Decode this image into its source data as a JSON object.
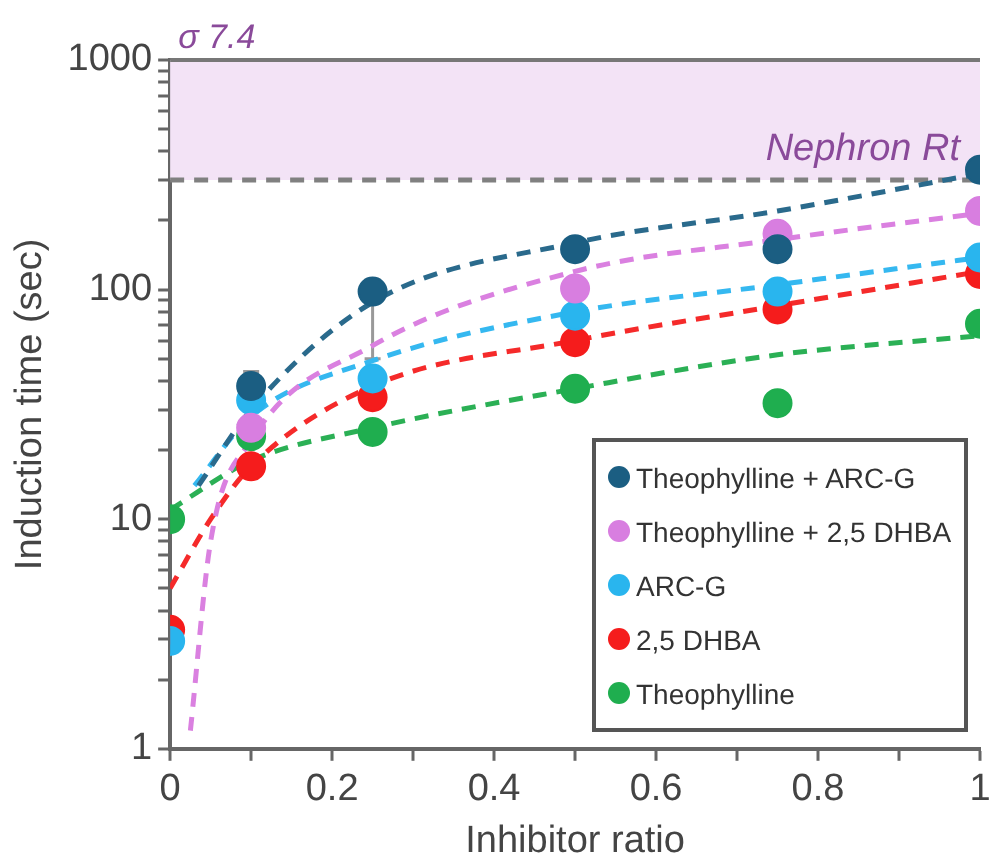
{
  "chart_data": {
    "type": "scatter",
    "xlabel": "Inhibitor ratio",
    "ylabel": "Induction time (sec)",
    "log": "y",
    "marker": "circle",
    "grid": false,
    "legend": "bottom right",
    "xlim": [
      0,
      1
    ],
    "xticks": [
      0,
      {
        "value": 0.1,
        "label": null
      },
      0.2,
      {
        "value": 0.3,
        "label": null
      },
      0.4,
      {
        "value": 0.5,
        "label": null
      },
      0.6,
      {
        "value": 0.7,
        "label": null
      },
      0.8,
      {
        "value": 0.9,
        "label": null
      },
      1
    ],
    "ylim": [
      1,
      1000
    ],
    "yticks": [
      1,
      {
        "value": 2,
        "label": null
      },
      {
        "value": 3,
        "label": null
      },
      {
        "value": 4,
        "label": null
      },
      {
        "value": 5,
        "label": null
      },
      {
        "value": 6,
        "label": null
      },
      {
        "value": 7,
        "label": null
      },
      {
        "value": 8,
        "label": null
      },
      {
        "value": 9,
        "label": null
      },
      10,
      {
        "value": 20,
        "label": null
      },
      {
        "value": 30,
        "label": null
      },
      {
        "value": 40,
        "label": null
      },
      {
        "value": 50,
        "label": null
      },
      {
        "value": 60,
        "label": null
      },
      {
        "value": 70,
        "label": null
      },
      {
        "value": 80,
        "label": null
      },
      {
        "value": 90,
        "label": null
      },
      100,
      {
        "value": 200,
        "label": null
      },
      {
        "value": 300,
        "label": null
      },
      {
        "value": 400,
        "label": null
      },
      {
        "value": 500,
        "label": null
      },
      {
        "value": 600,
        "label": null
      },
      {
        "value": 700,
        "label": null
      },
      {
        "value": 800,
        "label": null
      },
      {
        "value": 900,
        "label": null
      },
      1000
    ],
    "bands": [
      {
        "axis": "y",
        "from": 300,
        "to": 1000,
        "label": "σ 7.4",
        "color": "#f3e3f6"
      }
    ],
    "ref_lines": [
      {
        "axis": "y",
        "value": 300,
        "label": "Nephron Rt",
        "color": "#808080",
        "line_style": "dashed"
      }
    ],
    "series": [
      {
        "type": "line",
        "color": "#2a6a8c",
        "line_style": "dashed",
        "marker": "none",
        "x": [
          0.035,
          0.1,
          0.25,
          0.5,
          0.75,
          1
        ],
        "values": [
          14,
          30,
          88,
          160,
          220,
          320
        ]
      },
      {
        "type": "line",
        "color": "#da80e0",
        "line_style": "dashed",
        "marker": "none",
        "x": [
          0.025,
          0.05,
          0.1,
          0.25,
          0.5,
          0.75,
          1
        ],
        "values": [
          1.2,
          8,
          22,
          57,
          120,
          165,
          215
        ]
      },
      {
        "type": "line",
        "color": "#35b8f0",
        "line_style": "dashed",
        "marker": "none",
        "x": [
          0.03,
          0.1,
          0.25,
          0.5,
          0.75,
          1
        ],
        "values": [
          14,
          28,
          49,
          80,
          105,
          138
        ]
      },
      {
        "type": "line",
        "color": "#f52a2a",
        "line_style": "dashed",
        "marker": "none",
        "x": [
          0,
          0.05,
          0.1,
          0.25,
          0.5,
          0.75,
          1
        ],
        "values": [
          5,
          10,
          17,
          38,
          60,
          85,
          120
        ]
      },
      {
        "type": "line",
        "color": "#2bb055",
        "line_style": "dashed",
        "marker": "none",
        "x": [
          0,
          0.1,
          0.25,
          0.5,
          0.75,
          1
        ],
        "values": [
          11,
          18,
          25,
          37,
          52,
          63
        ]
      },
      {
        "name": "Theophylline + ARC-G",
        "color": "#1b5e82",
        "x": [
          0.1,
          0.25,
          0.5,
          0.75,
          1
        ],
        "values": [
          38,
          98,
          150,
          150,
          333
        ],
        "errors": [
          [
            32,
            44
          ],
          [
            50,
            110
          ],
          null,
          null,
          null
        ]
      },
      {
        "name": "Theophylline + 2,5 DHBA",
        "color": "#d87ee0",
        "x": [
          0.1,
          0.5,
          0.75,
          1
        ],
        "values": [
          25,
          101,
          175,
          220
        ]
      },
      {
        "name": "ARC-G",
        "color": "#29b5ee",
        "x": [
          0,
          0.1,
          0.25,
          0.5,
          0.75,
          1
        ],
        "values": [
          2.95,
          33,
          41,
          77,
          98,
          138
        ]
      },
      {
        "name": "2,5 DHBA",
        "color": "#f51c1c",
        "x": [
          0,
          0.1,
          0.25,
          0.5,
          0.75,
          1
        ],
        "values": [
          3.3,
          17,
          34,
          59,
          82,
          117
        ]
      },
      {
        "name": "Theophylline",
        "color": "#1fae4f",
        "x": [
          0,
          0.1,
          0.25,
          0.5,
          0.75,
          1
        ],
        "values": [
          10,
          23,
          24,
          37,
          32,
          71
        ]
      }
    ]
  }
}
